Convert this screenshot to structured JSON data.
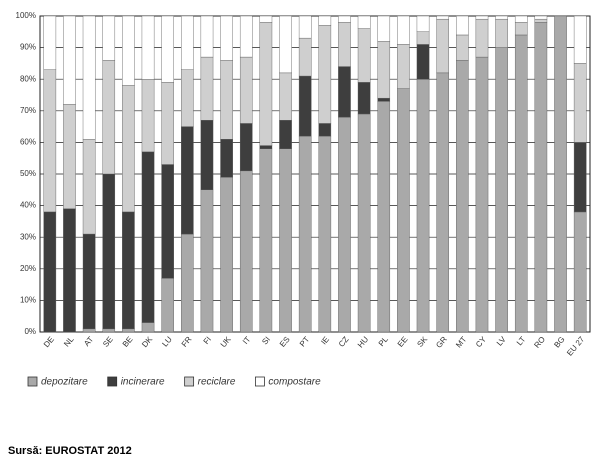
{
  "chart_data": {
    "type": "stacked_bar",
    "categories": [
      "DE",
      "NL",
      "AT",
      "SE",
      "BE",
      "DK",
      "LU",
      "FR",
      "FI",
      "UK",
      "IT",
      "SI",
      "ES",
      "PT",
      "IE",
      "CZ",
      "HU",
      "PL",
      "EE",
      "SK",
      "GR",
      "MT",
      "CY",
      "LV",
      "LT",
      "RO",
      "BG",
      "EU 27"
    ],
    "series": [
      {
        "name": "depozitare",
        "color": "#a9a9a9",
        "values": [
          0,
          0,
          1,
          1,
          1,
          3,
          17,
          31,
          45,
          49,
          51,
          58,
          58,
          62,
          62,
          68,
          69,
          73,
          77,
          80,
          82,
          86,
          87,
          90,
          94,
          98,
          100,
          38
        ]
      },
      {
        "name": "incinerare",
        "color": "#3e3e3e",
        "values": [
          38,
          39,
          30,
          49,
          37,
          54,
          36,
          34,
          22,
          12,
          15,
          1,
          9,
          19,
          4,
          16,
          10,
          1,
          0,
          11,
          0,
          0,
          0,
          0,
          0,
          0,
          0,
          22
        ]
      },
      {
        "name": "reciclare",
        "color": "#cfcfcf",
        "values": [
          45,
          33,
          30,
          36,
          40,
          23,
          26,
          18,
          20,
          25,
          21,
          39,
          15,
          12,
          31,
          14,
          17,
          18,
          14,
          4,
          17,
          8,
          12,
          9,
          4,
          1,
          0,
          25
        ]
      },
      {
        "name": "compostare",
        "color": "#ffffff",
        "values": [
          17,
          28,
          39,
          14,
          22,
          20,
          21,
          17,
          13,
          14,
          13,
          2,
          18,
          7,
          3,
          2,
          4,
          8,
          9,
          5,
          1,
          6,
          1,
          1,
          2,
          1,
          0,
          15
        ]
      }
    ],
    "ylim": [
      0,
      100
    ],
    "yticks": [
      {
        "value": 0,
        "label": "0%"
      },
      {
        "value": 10,
        "label": "10%"
      },
      {
        "value": 20,
        "label": "20%"
      },
      {
        "value": 30,
        "label": "30%"
      },
      {
        "value": 40,
        "label": "40%"
      },
      {
        "value": 50,
        "label": "50%"
      },
      {
        "value": 60,
        "label": "60%"
      },
      {
        "value": 70,
        "label": "70%"
      },
      {
        "value": 80,
        "label": "80%"
      },
      {
        "value": 90,
        "label": "90%"
      },
      {
        "value": 100,
        "label": "100%"
      }
    ],
    "grid": true,
    "source": "Sursă: EUROSTAT 2012"
  }
}
